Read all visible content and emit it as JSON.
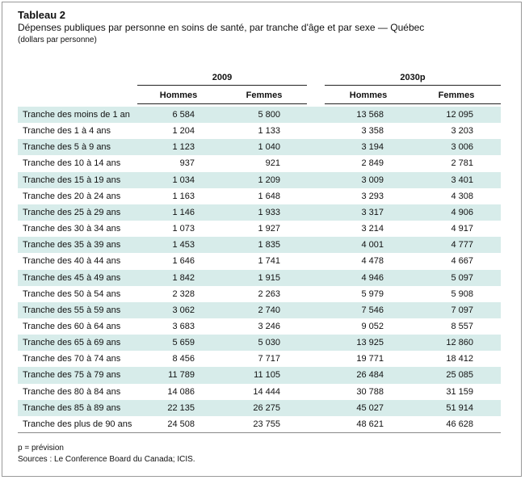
{
  "header": {
    "title": "Tableau 2",
    "subtitle": "Dépenses publiques par personne en soins de santé, par tranche d'âge et par sexe — Québec",
    "unit": "(dollars par personne)"
  },
  "table": {
    "groups": [
      "2009",
      "2030p"
    ],
    "columns": [
      "Hommes",
      "Femmes",
      "Hommes",
      "Femmes"
    ],
    "rows": [
      [
        "Tranche des moins de 1 an",
        "6 584",
        "5 800",
        "13 568",
        "12 095"
      ],
      [
        "Tranche des 1 à 4 ans",
        "1 204",
        "1 133",
        "3 358",
        "3 203"
      ],
      [
        "Tranche des 5 à 9 ans",
        "1 123",
        "1 040",
        "3 194",
        "3 006"
      ],
      [
        "Tranche des 10 à 14 ans",
        "937",
        "921",
        "2 849",
        "2 781"
      ],
      [
        "Tranche des 15 à 19 ans",
        "1 034",
        "1 209",
        "3 009",
        "3 401"
      ],
      [
        "Tranche des 20 à 24 ans",
        "1 163",
        "1 648",
        "3 293",
        "4 308"
      ],
      [
        "Tranche des 25 à 29 ans",
        "1 146",
        "1 933",
        "3 317",
        "4 906"
      ],
      [
        "Tranche des 30 à 34 ans",
        "1 073",
        "1 927",
        "3 214",
        "4 917"
      ],
      [
        "Tranche des 35 à 39 ans",
        "1 453",
        "1 835",
        "4 001",
        "4 777"
      ],
      [
        "Tranche des 40 à 44 ans",
        "1 646",
        "1 741",
        "4 478",
        "4 667"
      ],
      [
        "Tranche des 45 à 49 ans",
        "1 842",
        "1 915",
        "4 946",
        "5 097"
      ],
      [
        "Tranche des 50 à 54 ans",
        "2 328",
        "2 263",
        "5 979",
        "5 908"
      ],
      [
        "Tranche des 55 à 59 ans",
        "3 062",
        "2 740",
        "7 546",
        "7 097"
      ],
      [
        "Tranche des 60 à 64 ans",
        "3 683",
        "3 246",
        "9 052",
        "8 557"
      ],
      [
        "Tranche des 65 à 69 ans",
        "5 659",
        "5 030",
        "13 925",
        "12 860"
      ],
      [
        "Tranche des 70 à 74 ans",
        "8 456",
        "7 717",
        "19 771",
        "18 412"
      ],
      [
        "Tranche des 75 à 79 ans",
        "11 789",
        "11 105",
        "26 484",
        "25 085"
      ],
      [
        "Tranche des 80 à 84 ans",
        "14 086",
        "14 444",
        "30 788",
        "31 159"
      ],
      [
        "Tranche des 85 à 89 ans",
        "22 135",
        "26 275",
        "45 027",
        "51 914"
      ],
      [
        "Tranche des plus de 90 ans",
        "24 508",
        "23 755",
        "48 621",
        "46 628"
      ]
    ]
  },
  "footer": {
    "note": "p = prévision",
    "sources": "Sources : Le Conference Board du Canada; ICIS."
  }
}
